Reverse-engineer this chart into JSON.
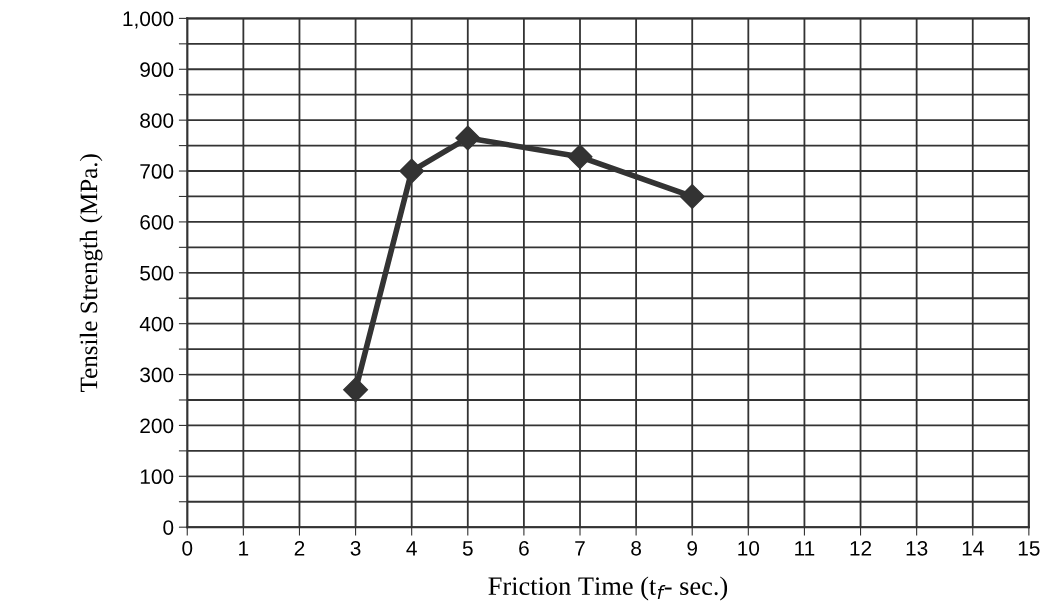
{
  "chart_data": {
    "type": "line",
    "xlabel": "Friction Time (t$_{f}$- sec.)",
    "ylabel": "Tensile Strength (MPa.)",
    "x": [
      3,
      4,
      5,
      7,
      9
    ],
    "series": [
      {
        "color": "#333333",
        "values": [
          270,
          700,
          765,
          728,
          650
        ]
      }
    ],
    "marker": "diamond",
    "line_style": "solid",
    "grid": true,
    "xlim": [
      0,
      15
    ],
    "xticks": [
      0,
      1,
      2,
      3,
      4,
      5,
      6,
      7,
      8,
      9,
      10,
      11,
      12,
      13,
      14,
      15
    ],
    "ylim": [
      0,
      1000
    ],
    "yticks": [
      0,
      {
        "value": 50,
        "label": null
      },
      100,
      {
        "value": 150,
        "label": null
      },
      200,
      {
        "value": 250,
        "label": null
      },
      300,
      {
        "value": 350,
        "label": null
      },
      400,
      {
        "value": 450,
        "label": null
      },
      500,
      {
        "value": 550,
        "label": null
      },
      600,
      {
        "value": 650,
        "label": null
      },
      700,
      {
        "value": 750,
        "label": null
      },
      800,
      {
        "value": 850,
        "label": null
      },
      900,
      {
        "value": 950,
        "label": null
      },
      {
        "value": 1000,
        "label": "1,000"
      }
    ]
  }
}
